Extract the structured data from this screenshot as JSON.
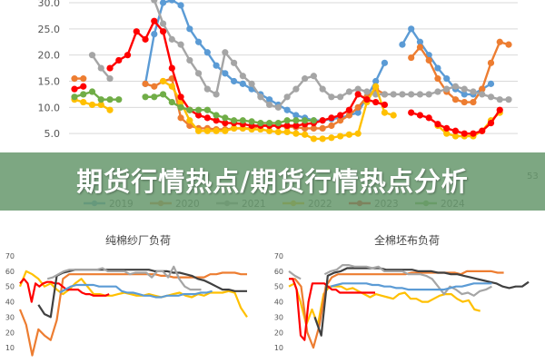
{
  "banner": {
    "title": "期货行情热点/期货行情热点分析"
  },
  "chart_data": [
    {
      "id": "top",
      "type": "line",
      "title": "",
      "xlabel": "",
      "ylabel": "",
      "ylim": [
        0,
        30
      ],
      "y_ticks": [
        "30.0",
        "25.0",
        "20.0",
        "15.0",
        "10.0",
        "5.0"
      ],
      "grid": true,
      "legend_position": "bottom",
      "partial_tick_label": "53",
      "series": [
        {
          "name": "2019",
          "color": "#5b9bd5",
          "values": [
            null,
            null,
            null,
            null,
            null,
            null,
            null,
            null,
            14.5,
            24,
            30,
            30.5,
            29.5,
            25,
            22.5,
            20.5,
            18,
            16.5,
            15,
            14.5,
            13.5,
            12.5,
            11.5,
            10.5,
            9.5,
            8.5,
            8,
            7.5,
            7.5,
            7.8,
            8,
            8.5,
            9,
            12,
            15,
            18.5,
            null,
            22,
            25,
            22.5,
            20,
            17.5,
            15.5,
            13.5,
            12.5,
            12.5,
            13.5,
            14.5,
            null
          ]
        },
        {
          "name": "2020",
          "color": "#ed7d31",
          "values": [
            15.5,
            15.5,
            null,
            null,
            null,
            null,
            null,
            null,
            14.5,
            14,
            15,
            15.5,
            8,
            6.5,
            6,
            6,
            5.8,
            5.8,
            6,
            6,
            6,
            6.5,
            6.5,
            6.5,
            6.3,
            6.2,
            6,
            6,
            6,
            6.5,
            7.5,
            8.5,
            10,
            12,
            13.5,
            12.5,
            null,
            null,
            19.5,
            21.5,
            19,
            15.5,
            13,
            11.5,
            11,
            11,
            13.5,
            18.5,
            22.5,
            22
          ]
        },
        {
          "name": "2021",
          "color": "#a5a5a5",
          "values": [
            null,
            null,
            20,
            17.5,
            15.5,
            null,
            null,
            null,
            null,
            30.5,
            26,
            23,
            22,
            19,
            16.5,
            13.5,
            12.5,
            20.5,
            18.5,
            16,
            14.5,
            12,
            10.5,
            10,
            12,
            13.5,
            15.5,
            16,
            13.5,
            12,
            12,
            13,
            13.5,
            13,
            12.5,
            12.5,
            12.5,
            12.5,
            12.5,
            12.5,
            12.5,
            13,
            13.5,
            14,
            13.5,
            13,
            12.5,
            12,
            11.5,
            11.5
          ]
        },
        {
          "name": "2022",
          "color": "#ffc000",
          "values": [
            11.5,
            11,
            10.5,
            10.5,
            9.5,
            null,
            null,
            null,
            null,
            null,
            15,
            14,
            11,
            7.5,
            5.5,
            5.5,
            5.5,
            5.5,
            6,
            6,
            5.8,
            5.8,
            5.5,
            5.3,
            5.3,
            5,
            4.8,
            4,
            4,
            4.2,
            4.5,
            4.8,
            5,
            11,
            14,
            9,
            8.5,
            null,
            null,
            null,
            null,
            6.5,
            5,
            4.5,
            4.5,
            4.5,
            5.5,
            7.5,
            9
          ]
        },
        {
          "name": "2023",
          "color": "#ff0000",
          "values": [
            13.5,
            14,
            null,
            null,
            17.5,
            19,
            20,
            24.5,
            23,
            26.5,
            24.5,
            17.5,
            12,
            9.5,
            8.5,
            8,
            7.5,
            7,
            7,
            6.8,
            6.5,
            6.5,
            6.5,
            6.5,
            6.5,
            6.5,
            6.8,
            7,
            7.5,
            8,
            8.5,
            9.5,
            12.5,
            11.5,
            11,
            10.5,
            null,
            null,
            9,
            8.5,
            8,
            6.8,
            6,
            5.5,
            5,
            5,
            5.5,
            7,
            9.5
          ]
        },
        {
          "name": "2024",
          "color": "#70ad47",
          "values": [
            12,
            12.5,
            13,
            11.5,
            11.5,
            11.5,
            null,
            null,
            12,
            12,
            12.5,
            11,
            10,
            9.5,
            9.5,
            9.5,
            8.5,
            8,
            7.5,
            7.5,
            7.3,
            7,
            7,
            7,
            7.5,
            7.5,
            7.5,
            7.5
          ]
        }
      ]
    },
    {
      "id": "left",
      "type": "line",
      "title": "纯棉纱厂负荷",
      "xlabel": "",
      "ylabel": "",
      "ylim": [
        0,
        70
      ],
      "y_ticks": [
        "70",
        "60",
        "50",
        "40",
        "30",
        "20",
        "10"
      ],
      "grid": false,
      "series": [
        {
          "color": "#ffc000",
          "values": [
            50,
            60,
            58,
            55,
            50,
            52,
            48,
            45,
            48,
            52,
            55,
            50,
            45,
            45,
            44,
            44,
            45,
            46,
            45,
            44,
            44,
            45,
            44,
            43,
            44,
            45,
            46,
            44,
            43,
            45,
            44,
            46,
            46,
            46,
            47,
            46,
            36,
            30
          ]
        },
        {
          "color": "#ed7d31",
          "values": [
            35,
            25,
            5,
            22,
            18,
            15,
            28,
            55,
            58,
            58,
            58,
            58,
            58,
            58,
            58,
            58,
            58,
            58,
            58,
            58,
            58,
            58,
            58,
            57,
            57,
            56,
            56,
            56,
            56,
            56,
            56,
            58,
            58,
            59,
            59,
            59,
            58,
            58
          ]
        },
        {
          "color": "#ff0000",
          "values": [
            52,
            55,
            52,
            40,
            52,
            50,
            52,
            53,
            53,
            52,
            52,
            50,
            48,
            48,
            48,
            48,
            46,
            45,
            45,
            44,
            44,
            44,
            44,
            45
          ]
        },
        {
          "color": "#404040",
          "values": [
            null,
            null,
            null,
            38,
            32,
            30,
            57,
            59,
            60,
            61,
            61,
            61,
            61,
            61,
            61,
            61,
            61,
            61,
            61,
            61,
            61,
            61,
            60,
            60,
            60,
            59,
            59,
            58,
            57,
            55,
            54,
            52,
            50,
            48,
            48,
            47,
            47,
            47
          ]
        },
        {
          "color": "#a5a5a5",
          "values": [
            null,
            null,
            null,
            null,
            null,
            55,
            56,
            58,
            60,
            61,
            61,
            61,
            61,
            61,
            61,
            62,
            60,
            60,
            60,
            60,
            58,
            59,
            59,
            59,
            56,
            60,
            60,
            56,
            63,
            55,
            50,
            48,
            48,
            48
          ]
        },
        {
          "color": "#5b9bd5",
          "values": [
            null,
            null,
            null,
            null,
            null,
            null,
            null,
            46,
            48,
            50,
            51,
            51,
            51,
            51,
            50,
            50,
            50,
            50,
            47,
            46,
            46,
            45,
            44,
            44,
            43,
            43,
            44,
            44,
            44,
            45,
            45,
            45,
            46,
            46,
            47
          ]
        }
      ]
    },
    {
      "id": "right",
      "type": "line",
      "title": "全棉坯布负荷",
      "xlabel": "",
      "ylabel": "",
      "ylim": [
        0,
        70
      ],
      "y_ticks": [
        "70",
        "60",
        "50",
        "40",
        "30",
        "20",
        "10"
      ],
      "grid": false,
      "series": [
        {
          "color": "#ffc000",
          "values": [
            50,
            52,
            40,
            25,
            35,
            25,
            45,
            50,
            50,
            50,
            48,
            49,
            47,
            45,
            43,
            45,
            44,
            43,
            42,
            45,
            46,
            42,
            42,
            40,
            40,
            42,
            44,
            45,
            45,
            42,
            40,
            41,
            35,
            34
          ]
        },
        {
          "color": "#ed7d31",
          "values": [
            55,
            55,
            50,
            20,
            10,
            25,
            50,
            56,
            58,
            58,
            58,
            58,
            58,
            58,
            58,
            58,
            58,
            58,
            58,
            58,
            59,
            59,
            59,
            59,
            59,
            59,
            59,
            59,
            58,
            60,
            60,
            60,
            60,
            60,
            59,
            59
          ]
        },
        {
          "color": "#ff0000",
          "values": [
            55,
            55,
            48,
            18,
            15,
            40,
            52,
            52,
            52,
            52,
            50,
            48,
            48,
            46,
            46,
            46,
            46,
            46,
            46,
            46,
            46,
            46,
            46
          ]
        },
        {
          "color": "#404040",
          "values": [
            null,
            null,
            null,
            null,
            30,
            18,
            57,
            59,
            60,
            62,
            62,
            62,
            62,
            62,
            62,
            61,
            61,
            61,
            61,
            61,
            60,
            60,
            60,
            59,
            59,
            58,
            58,
            57,
            56,
            55,
            54,
            53,
            52,
            50,
            49,
            50,
            50,
            53
          ]
        },
        {
          "color": "#a5a5a5",
          "values": [
            60,
            57,
            55,
            null,
            null,
            null,
            58,
            60,
            61,
            64,
            64,
            63,
            63,
            63,
            62,
            63,
            60,
            60,
            60,
            60,
            58,
            58,
            58,
            57,
            55,
            50,
            45,
            50,
            48,
            45,
            46,
            44,
            47,
            48,
            50
          ]
        },
        {
          "color": "#5b9bd5",
          "values": [
            null,
            null,
            null,
            null,
            null,
            null,
            null,
            50,
            51,
            52,
            52,
            52,
            52,
            52,
            51,
            51,
            50,
            50,
            49,
            49,
            48,
            48,
            48,
            48,
            48,
            48,
            48,
            49,
            50,
            50,
            51,
            52,
            52,
            52,
            52
          ]
        }
      ]
    }
  ]
}
